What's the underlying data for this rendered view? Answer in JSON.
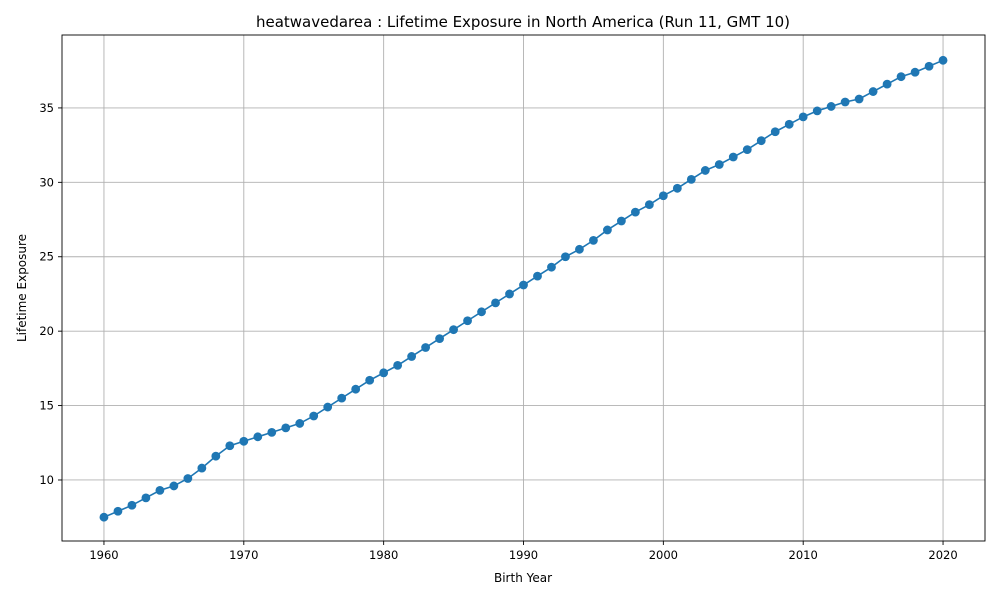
{
  "chart_data": {
    "type": "line",
    "title": "heatwavedarea : Lifetime Exposure in North America (Run 11, GMT 10)",
    "xlabel": "Birth Year",
    "ylabel": "Lifetime Exposure",
    "xlim": [
      1957,
      2023
    ],
    "ylim": [
      5.9,
      39.9
    ],
    "xticks": [
      1960,
      1970,
      1980,
      1990,
      2000,
      2010,
      2020
    ],
    "yticks": [
      10,
      15,
      20,
      25,
      30,
      35
    ],
    "grid": true,
    "color": "#1f77b4",
    "marker": "circle",
    "x": [
      1960,
      1961,
      1962,
      1963,
      1964,
      1965,
      1966,
      1967,
      1968,
      1969,
      1970,
      1971,
      1972,
      1973,
      1974,
      1975,
      1976,
      1977,
      1978,
      1979,
      1980,
      1981,
      1982,
      1983,
      1984,
      1985,
      1986,
      1987,
      1988,
      1989,
      1990,
      1991,
      1992,
      1993,
      1994,
      1995,
      1996,
      1997,
      1998,
      1999,
      2000,
      2001,
      2002,
      2003,
      2004,
      2005,
      2006,
      2007,
      2008,
      2009,
      2010,
      2011,
      2012,
      2013,
      2014,
      2015,
      2016,
      2017,
      2018,
      2019,
      2020
    ],
    "y": [
      7.5,
      7.9,
      8.3,
      8.8,
      9.3,
      9.6,
      10.1,
      10.8,
      11.6,
      12.3,
      12.6,
      12.9,
      13.2,
      13.5,
      13.8,
      14.3,
      14.9,
      15.5,
      16.1,
      16.7,
      17.2,
      17.7,
      18.3,
      18.9,
      19.5,
      20.1,
      20.7,
      21.3,
      21.9,
      22.5,
      23.1,
      23.7,
      24.3,
      25.0,
      25.5,
      26.1,
      26.8,
      27.4,
      28.0,
      28.5,
      29.1,
      29.6,
      30.2,
      30.8,
      31.2,
      31.7,
      32.2,
      32.8,
      33.4,
      33.9,
      34.4,
      34.8,
      35.1,
      35.4,
      35.6,
      36.1,
      36.6,
      37.1,
      37.4,
      37.8,
      38.2
    ]
  }
}
